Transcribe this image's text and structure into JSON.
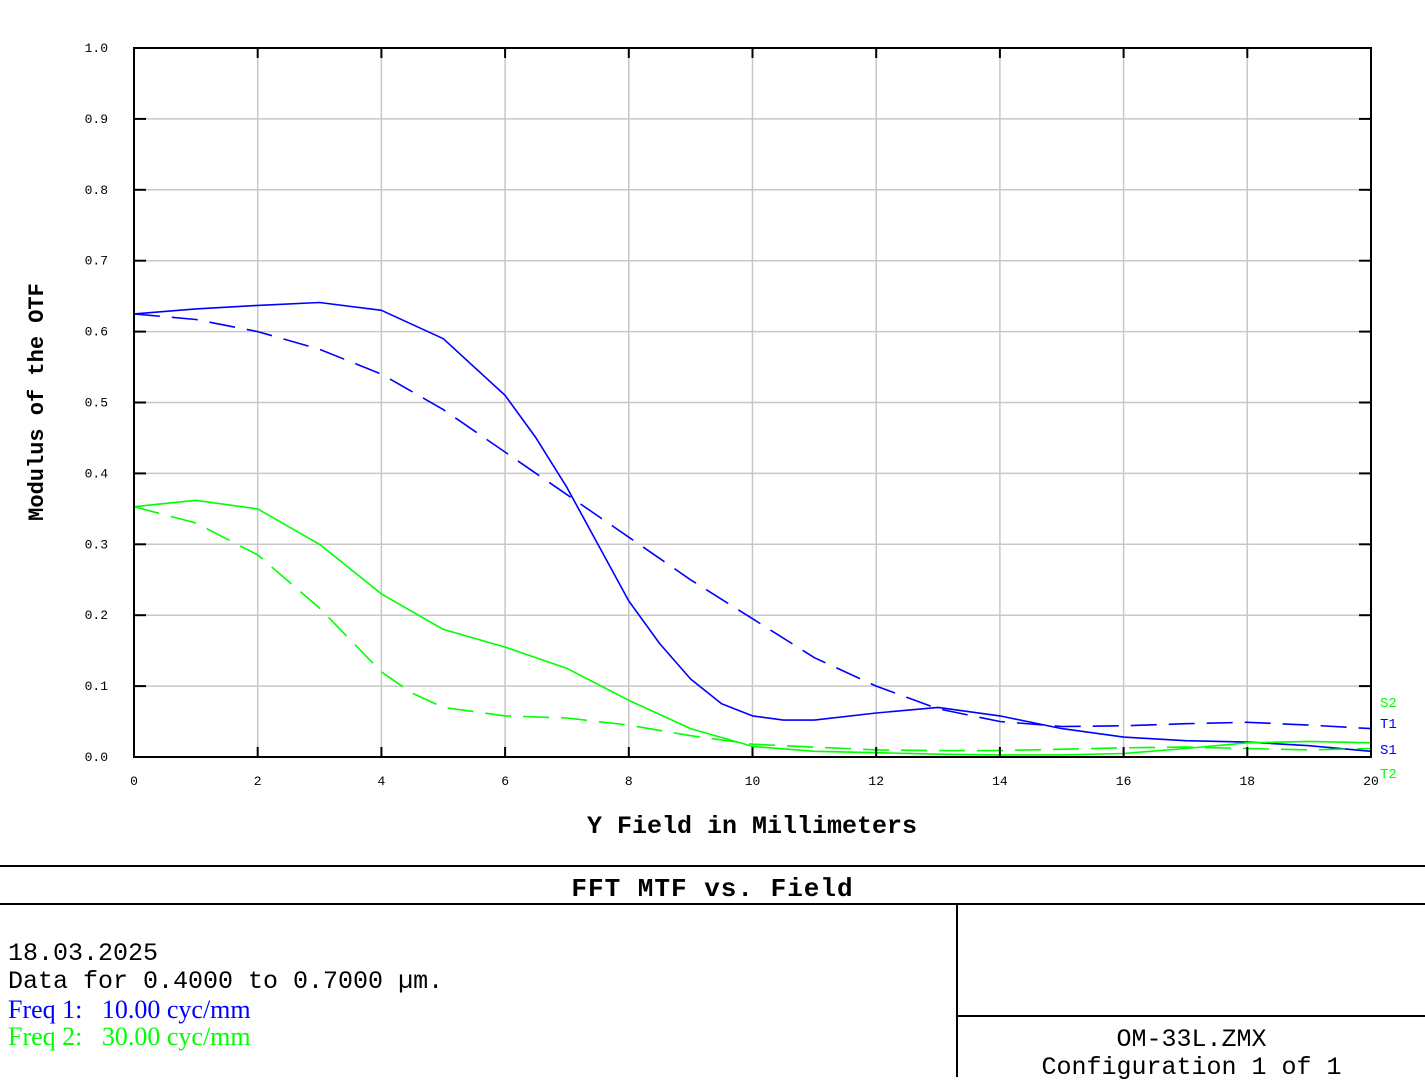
{
  "chart_data": {
    "type": "line",
    "title": "FFT MTF vs. Field",
    "xlabel": "Y Field in Millimeters",
    "ylabel": "Modulus of the OTF",
    "xlim": [
      0,
      20
    ],
    "ylim": [
      0,
      1.0
    ],
    "xticks": [
      "0",
      "2",
      "4",
      "6",
      "8",
      "10",
      "12",
      "14",
      "16",
      "18",
      "20"
    ],
    "yticks": [
      "0.0",
      "0.1",
      "0.2",
      "0.3",
      "0.4",
      "0.5",
      "0.6",
      "0.7",
      "0.8",
      "0.9",
      "1.0"
    ],
    "grid": true,
    "legend_placement": "right-end",
    "series": [
      {
        "name": "S1",
        "color": "#0000ff",
        "style": "solid",
        "x": [
          0,
          1,
          2,
          3,
          4,
          5,
          6,
          6.5,
          7,
          7.5,
          8,
          8.5,
          9,
          9.5,
          10,
          10.5,
          11,
          12,
          13,
          14,
          15,
          16,
          17,
          18,
          19,
          20
        ],
        "y": [
          0.625,
          0.632,
          0.637,
          0.641,
          0.63,
          0.59,
          0.51,
          0.45,
          0.38,
          0.3,
          0.22,
          0.16,
          0.11,
          0.075,
          0.058,
          0.052,
          0.052,
          0.062,
          0.07,
          0.058,
          0.04,
          0.028,
          0.023,
          0.021,
          0.016,
          0.008
        ]
      },
      {
        "name": "T1",
        "color": "#0000ff",
        "style": "dashed",
        "x": [
          0,
          1,
          2,
          3,
          4,
          5,
          6,
          7,
          8,
          9,
          10,
          11,
          12,
          13,
          14,
          15,
          16,
          17,
          18,
          19,
          20
        ],
        "y": [
          0.625,
          0.617,
          0.6,
          0.575,
          0.54,
          0.49,
          0.43,
          0.37,
          0.31,
          0.25,
          0.195,
          0.14,
          0.1,
          0.068,
          0.05,
          0.043,
          0.044,
          0.047,
          0.049,
          0.045,
          0.04
        ]
      },
      {
        "name": "S2",
        "color": "#00ff00",
        "style": "solid",
        "x": [
          0,
          1,
          2,
          3,
          4,
          5,
          6,
          7,
          8,
          9,
          10,
          11,
          12,
          13,
          14,
          15,
          16,
          17,
          18,
          19,
          20
        ],
        "y": [
          0.353,
          0.362,
          0.35,
          0.3,
          0.23,
          0.18,
          0.155,
          0.125,
          0.08,
          0.04,
          0.015,
          0.008,
          0.006,
          0.004,
          0.003,
          0.003,
          0.005,
          0.012,
          0.02,
          0.022,
          0.02
        ]
      },
      {
        "name": "T2",
        "color": "#00ff00",
        "style": "dashed",
        "x": [
          0,
          1,
          2,
          3,
          4,
          4.5,
          5,
          6,
          7,
          8,
          9,
          10,
          11,
          12,
          13,
          14,
          15,
          16,
          17,
          18,
          19,
          20
        ],
        "y": [
          0.353,
          0.33,
          0.285,
          0.21,
          0.12,
          0.09,
          0.07,
          0.058,
          0.055,
          0.045,
          0.03,
          0.018,
          0.014,
          0.01,
          0.009,
          0.009,
          0.011,
          0.013,
          0.014,
          0.012,
          0.01,
          0.012
        ]
      }
    ]
  },
  "footer": {
    "title": "FFT MTF vs. Field",
    "date": "18.03.2025",
    "data_range": "Data for 0.4000 to 0.7000 µm.",
    "freq1": "Freq 1:   10.00 cyc/mm",
    "freq1_color": "#0000ff",
    "freq2": "Freq 2:   30.00 cyc/mm",
    "freq2_color": "#00ff00",
    "file": "OM-33L.ZMX",
    "config": "Configuration 1 of 1"
  }
}
